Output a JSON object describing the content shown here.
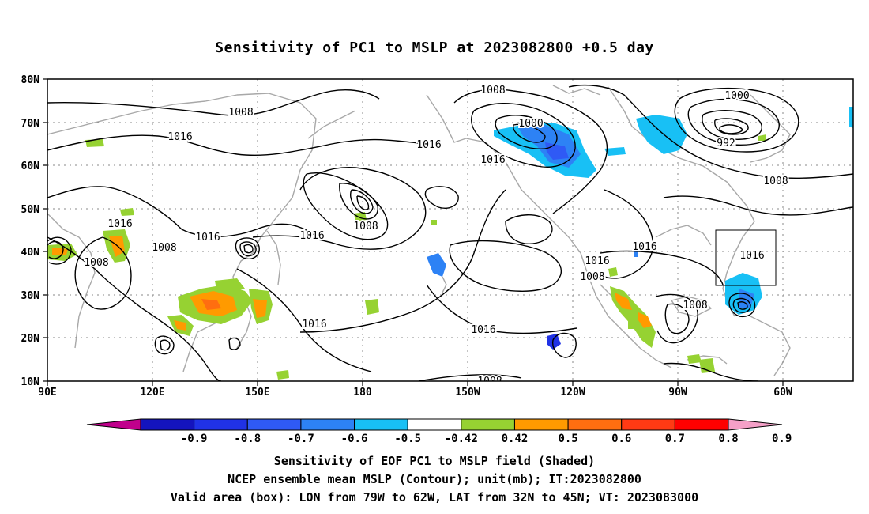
{
  "title": "Sensitivity of PC1 to MSLP at 2023082800 +0.5 day",
  "map": {
    "lat_labels": [
      "80N",
      "70N",
      "60N",
      "50N",
      "40N",
      "30N",
      "20N",
      "10N"
    ],
    "lon_labels": [
      "90E",
      "120E",
      "150E",
      "180",
      "150W",
      "120W",
      "90W",
      "60W"
    ],
    "lon_range": [
      90,
      320
    ],
    "lat_range": [
      10,
      80
    ],
    "valid_box": {
      "lon_west": -79,
      "lon_east": -62,
      "lat_south": 32,
      "lat_north": 45
    },
    "contour_labels": [
      "1008",
      "1016",
      "1016",
      "1016",
      "1008",
      "1016",
      "1008",
      "1008",
      "1016",
      "1016",
      "1016",
      "1008",
      "1000",
      "1016",
      "1016",
      "1016",
      "1008",
      "1008",
      "1000",
      "992",
      "1008",
      "1016",
      "1008",
      "1008"
    ],
    "colors": {
      "coast": "#a8a8a8",
      "contour": "#000000",
      "grid": "#888888"
    }
  },
  "colorbar": {
    "labels": [
      "-0.9",
      "-0.8",
      "-0.7",
      "-0.6",
      "-0.5",
      "-0.42",
      "0.42",
      "0.5",
      "0.6",
      "0.7",
      "0.8",
      "0.9"
    ],
    "colors": [
      "#c0008c",
      "#1414be",
      "#2032e6",
      "#2f5af5",
      "#2d82f5",
      "#18c0f5",
      "#ffffff",
      "#96d232",
      "#ff9a00",
      "#ff6e10",
      "#ff3a14",
      "#ff0000",
      "#f5a0c8"
    ]
  },
  "captions": [
    "Sensitivity of EOF PC1 to MSLP field (Shaded)",
    "NCEP ensemble mean MSLP (Contour); unit(mb); IT:2023082800",
    "Valid area (box): LON from 79W to 62W, LAT from 32N to 45N; VT: 2023083000"
  ]
}
